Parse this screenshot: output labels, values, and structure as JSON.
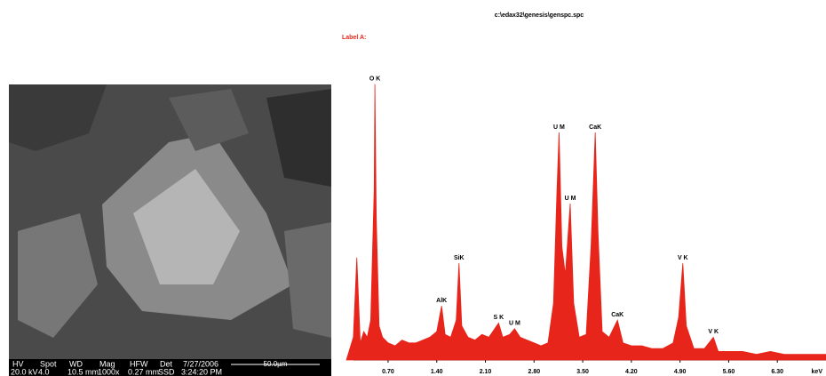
{
  "sem_image": {
    "info_bar": {
      "headers": [
        "HV",
        "Spot",
        "WD",
        "Mag",
        "HFW",
        "Det",
        "7/27/2006"
      ],
      "values": [
        "20.0 kV",
        "4.0",
        "10.5 mm",
        "1000x",
        "0.27 mm",
        "SSD",
        "3:24:20 PM"
      ],
      "scale_bar": "50.0µm"
    }
  },
  "chart_data": {
    "type": "area",
    "title": "c:\\edax32\\genesis\\genspc.spc",
    "subtitle": "Label A:",
    "x_label": "keV",
    "color": "#e8251b",
    "x": [
      0.1,
      0.15,
      0.2,
      0.25,
      0.3,
      0.35,
      0.4,
      0.45,
      0.5,
      0.51,
      0.53,
      0.57,
      0.62,
      0.7,
      0.8,
      0.9,
      1.0,
      1.1,
      1.2,
      1.3,
      1.4,
      1.47,
      1.52,
      1.6,
      1.68,
      1.72,
      1.76,
      1.85,
      1.95,
      2.05,
      2.15,
      2.29,
      2.35,
      2.45,
      2.52,
      2.6,
      2.7,
      2.8,
      2.9,
      3.0,
      3.08,
      3.13,
      3.16,
      3.2,
      3.25,
      3.32,
      3.37,
      3.45,
      3.55,
      3.62,
      3.68,
      3.72,
      3.78,
      3.88,
      4.0,
      4.08,
      4.2,
      4.35,
      4.5,
      4.65,
      4.8,
      4.88,
      4.94,
      4.99,
      5.1,
      5.25,
      5.38,
      5.45,
      5.6,
      5.8,
      6.0,
      6.2,
      6.4,
      6.6,
      6.8,
      7.0
    ],
    "values": [
      0,
      4,
      8,
      36,
      6,
      10,
      8,
      14,
      60,
      97,
      50,
      12,
      8,
      6,
      5,
      7,
      6,
      6,
      7,
      8,
      10,
      19,
      9,
      8,
      14,
      34,
      12,
      8,
      7,
      9,
      8,
      13,
      8,
      9,
      11,
      8,
      7,
      6,
      5,
      6,
      20,
      60,
      80,
      40,
      30,
      55,
      20,
      8,
      9,
      40,
      80,
      45,
      10,
      8,
      14,
      6,
      5,
      5,
      4,
      4,
      6,
      15,
      34,
      12,
      4,
      4,
      8,
      3,
      3,
      3,
      2,
      3,
      2,
      2,
      2,
      2
    ],
    "xlim": [
      0.1,
      7.0
    ],
    "ylim": [
      0,
      100
    ],
    "xticks": [
      {
        "value": 0.7,
        "label": "0.70"
      },
      {
        "value": 1.4,
        "label": "1.40"
      },
      {
        "value": 2.1,
        "label": "2.10"
      },
      {
        "value": 2.8,
        "label": "2.80"
      },
      {
        "value": 3.5,
        "label": "3.50"
      },
      {
        "value": 4.2,
        "label": "4.20"
      },
      {
        "value": 4.9,
        "label": "4.90"
      },
      {
        "value": 5.6,
        "label": "5.60"
      },
      {
        "value": 6.3,
        "label": "6.30"
      }
    ],
    "annotations": [
      {
        "text": "O K",
        "x": 0.51,
        "y": 97
      },
      {
        "text": "AlK",
        "x": 1.47,
        "y": 19
      },
      {
        "text": "SiK",
        "x": 1.72,
        "y": 34
      },
      {
        "text": "S K",
        "x": 2.29,
        "y": 13
      },
      {
        "text": "U M",
        "x": 2.52,
        "y": 11
      },
      {
        "text": "U M",
        "x": 3.16,
        "y": 80
      },
      {
        "text": "U M",
        "x": 3.32,
        "y": 55
      },
      {
        "text": "CaK",
        "x": 3.68,
        "y": 80
      },
      {
        "text": "CaK",
        "x": 4.0,
        "y": 14
      },
      {
        "text": "V K",
        "x": 4.94,
        "y": 34
      },
      {
        "text": "V K",
        "x": 5.38,
        "y": 8
      }
    ]
  }
}
